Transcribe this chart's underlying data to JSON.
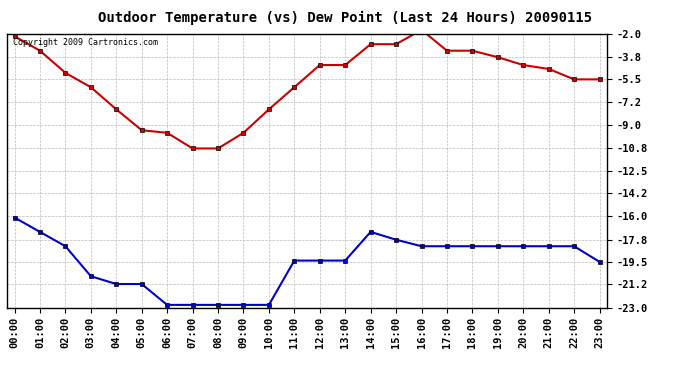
{
  "title": "Outdoor Temperature (vs) Dew Point (Last 24 Hours) 20090115",
  "copyright": "Copyright 2009 Cartronics.com",
  "x_labels": [
    "00:00",
    "01:00",
    "02:00",
    "03:00",
    "04:00",
    "05:00",
    "06:00",
    "07:00",
    "08:00",
    "09:00",
    "10:00",
    "11:00",
    "12:00",
    "13:00",
    "14:00",
    "15:00",
    "16:00",
    "17:00",
    "18:00",
    "19:00",
    "20:00",
    "21:00",
    "22:00",
    "23:00"
  ],
  "y_ticks": [
    -2.0,
    -3.8,
    -5.5,
    -7.2,
    -9.0,
    -10.8,
    -12.5,
    -14.2,
    -16.0,
    -17.8,
    -19.5,
    -21.2,
    -23.0
  ],
  "y_min": -23.0,
  "y_max": -2.0,
  "temp_color": "#cc0000",
  "dew_color": "#0000cc",
  "grid_color": "#bbbbbb",
  "bg_color": "#ffffff",
  "temp_values": [
    -2.2,
    -3.3,
    -5.0,
    -6.1,
    -7.8,
    -9.4,
    -9.6,
    -10.8,
    -10.8,
    -9.6,
    -7.8,
    -6.1,
    -4.4,
    -4.4,
    -2.8,
    -2.8,
    -1.7,
    -3.3,
    -3.3,
    -3.8,
    -4.4,
    -4.7,
    -5.5,
    -5.5
  ],
  "dew_values": [
    -16.1,
    -17.2,
    -18.3,
    -20.6,
    -21.2,
    -21.2,
    -22.8,
    -22.8,
    -22.8,
    -22.8,
    -22.8,
    -19.4,
    -19.4,
    -19.4,
    -17.2,
    -17.8,
    -18.3,
    -18.3,
    -18.3,
    -18.3,
    -18.3,
    -18.3,
    -18.3,
    -19.5
  ],
  "title_fontsize": 10,
  "tick_fontsize": 7.5,
  "copyright_fontsize": 6,
  "marker": "s",
  "markersize": 3,
  "linewidth": 1.5
}
